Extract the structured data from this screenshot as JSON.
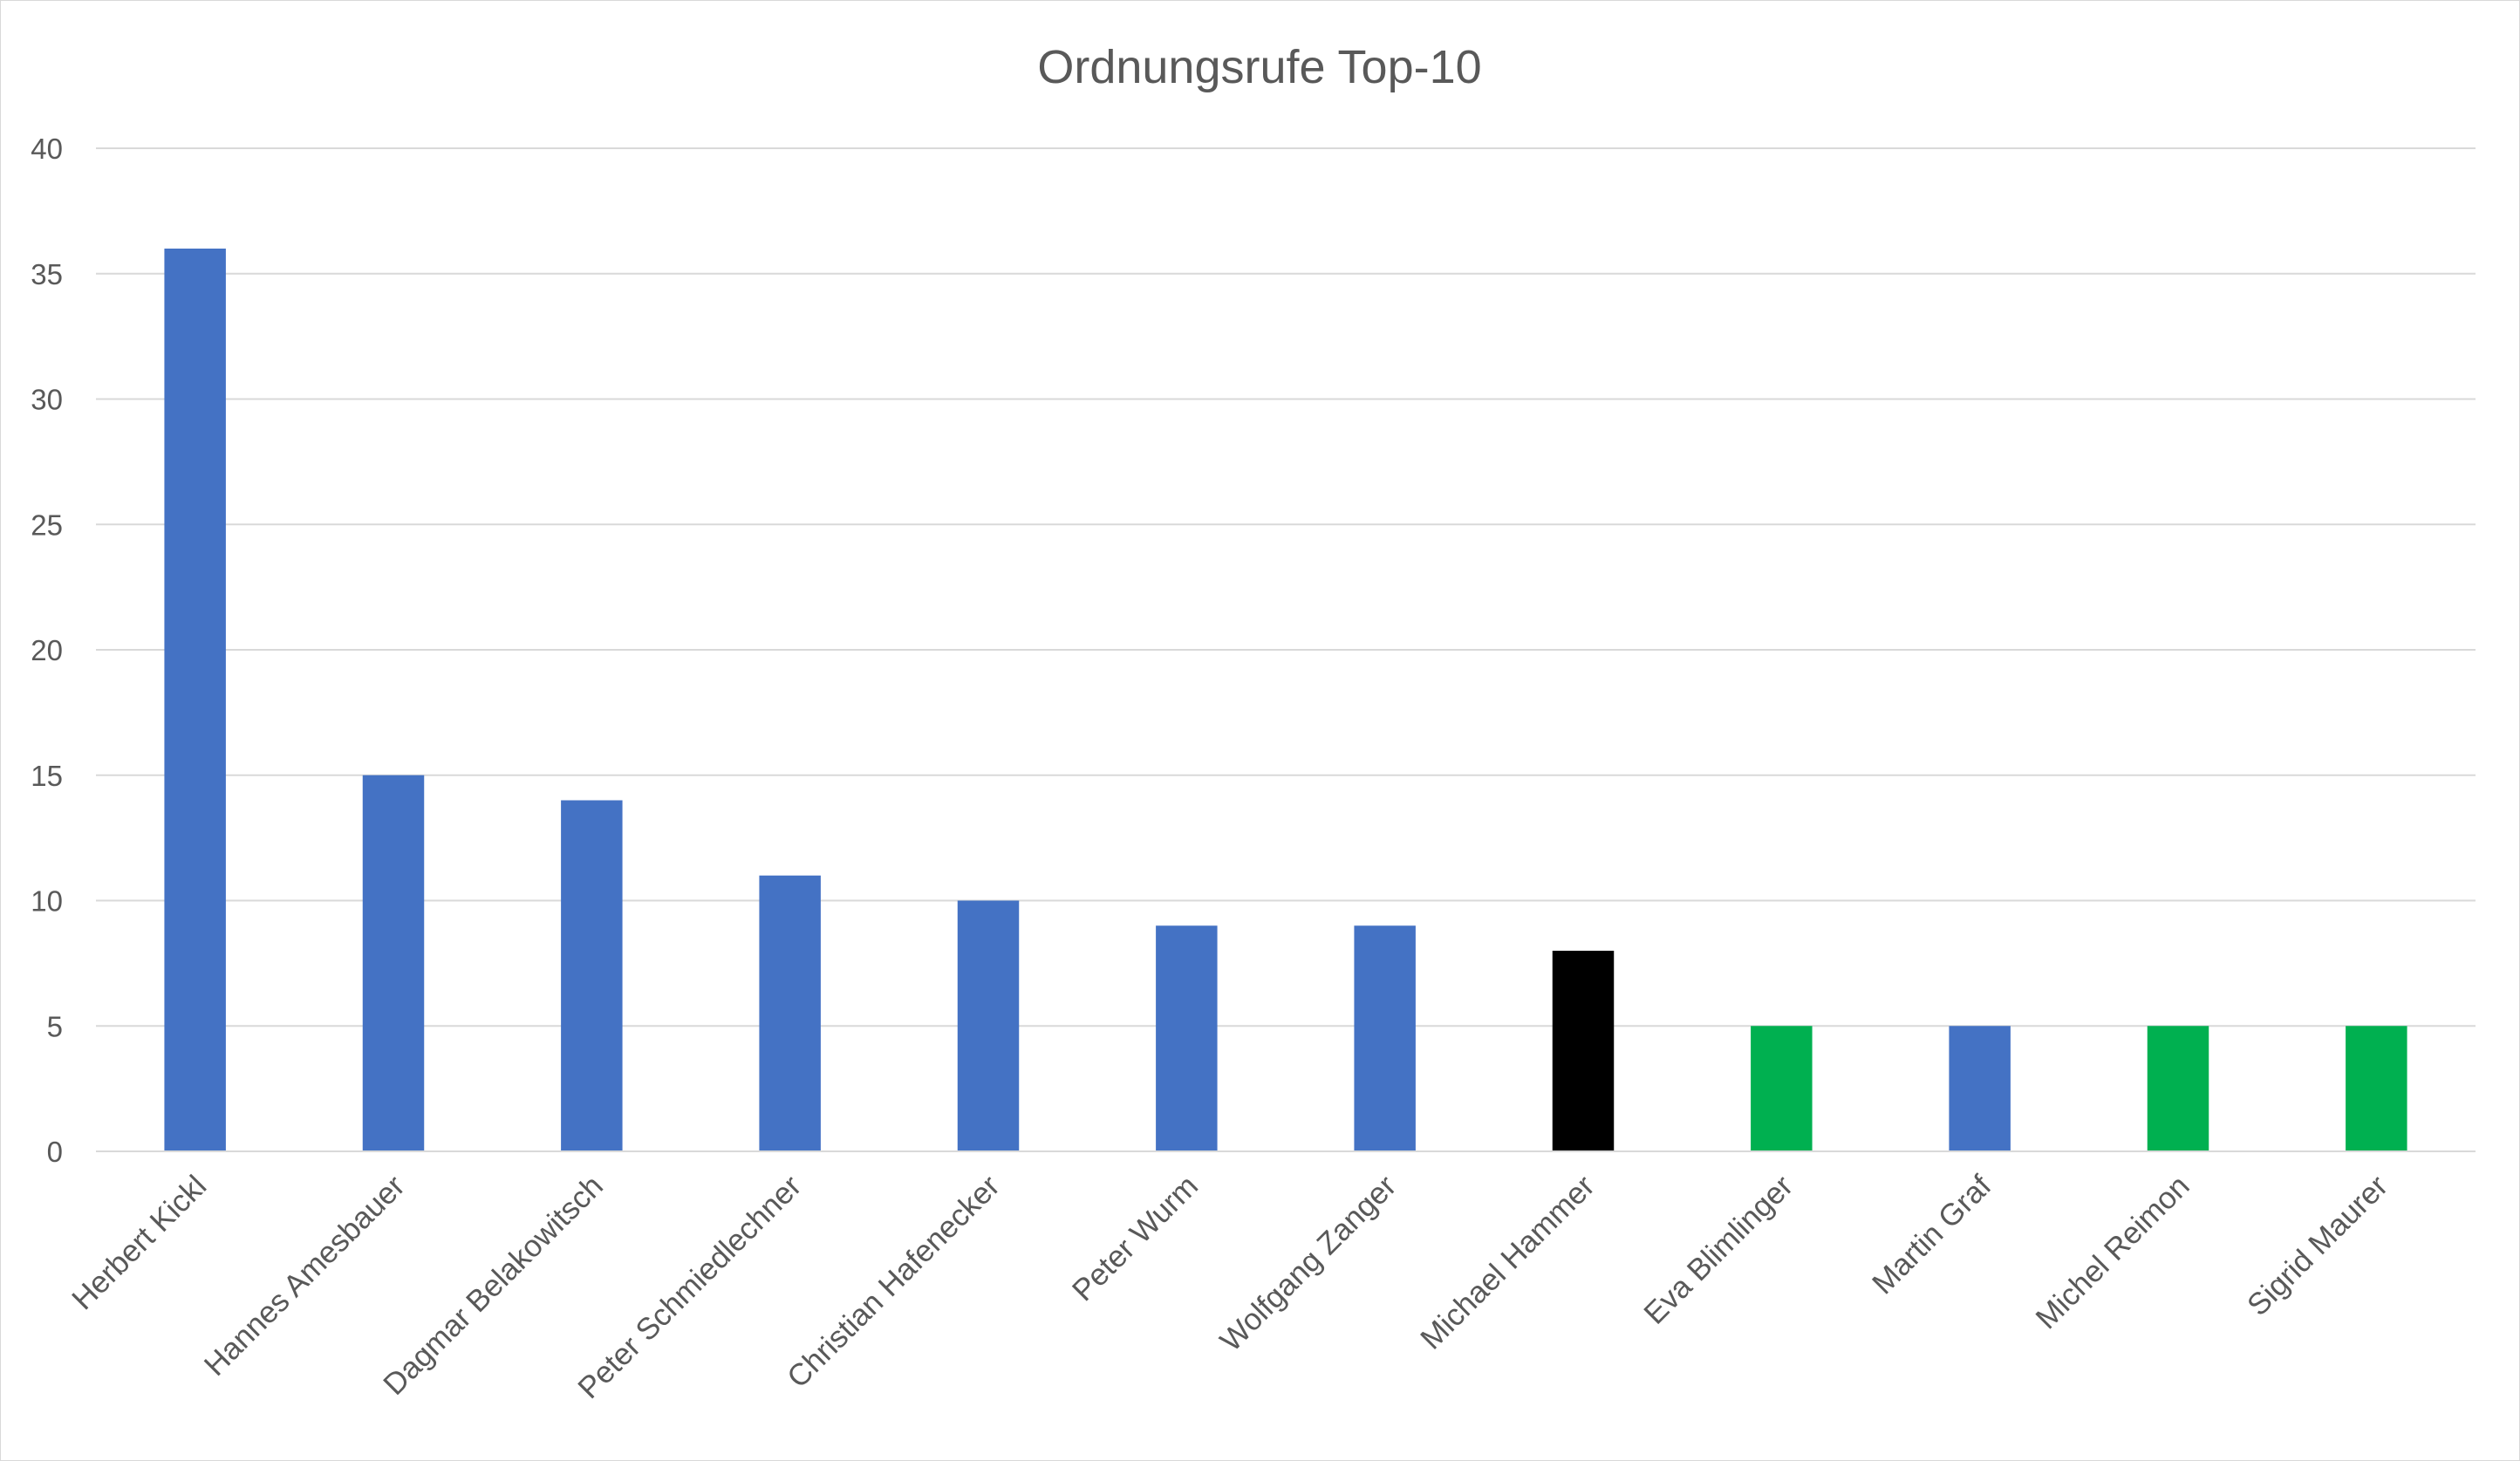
{
  "chart_data": {
    "type": "bar",
    "title": "Ordnungsrufe Top-10",
    "xlabel": "",
    "ylabel": "",
    "ylim": [
      0,
      40
    ],
    "yticks": [
      0,
      5,
      10,
      15,
      20,
      25,
      30,
      35,
      40
    ],
    "grid": true,
    "legend": "none",
    "categories": [
      "Herbert Kickl",
      "Hannes Amesbauer",
      "Dagmar Belakowitsch",
      "Peter Schmiedlechner",
      "Christian Hafenecker",
      "Peter Wurm",
      "Wolfgang Zanger",
      "Michael Hammer",
      "Eva Blimlinger",
      "Martin Graf",
      "Michel Reimon",
      "Sigrid Maurer"
    ],
    "values": [
      36,
      15,
      14,
      11,
      10,
      9,
      9,
      8,
      5,
      5,
      5,
      5
    ],
    "colors": [
      "#4472c4",
      "#4472c4",
      "#4472c4",
      "#4472c4",
      "#4472c4",
      "#4472c4",
      "#4472c4",
      "#000000",
      "#00b050",
      "#4472c4",
      "#00b050",
      "#00b050"
    ]
  }
}
